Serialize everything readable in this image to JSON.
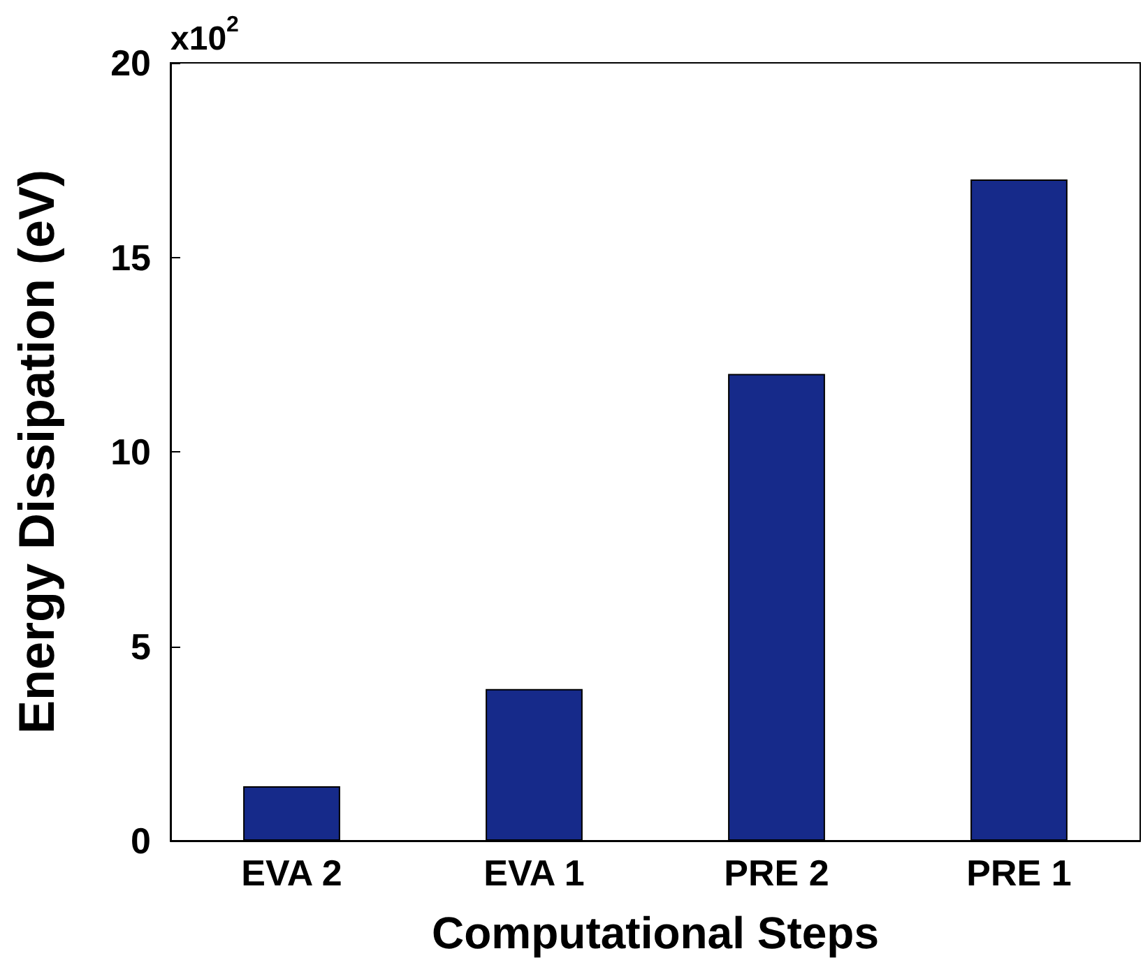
{
  "chart_data": {
    "type": "bar",
    "xlabel": "Computational Steps",
    "ylabel": "Energy Dissipation (eV)",
    "annotations": [
      "x10$^{2}$"
    ],
    "categories": [
      "EVA 2",
      "EVA 1",
      "PRE 2",
      "PRE 1"
    ],
    "values": [
      1.4,
      3.9,
      12,
      17
    ],
    "color": "#162a8a",
    "ylim": [
      0,
      20
    ],
    "yticks": [
      0,
      5,
      10,
      15,
      20
    ],
    "grid": false
  }
}
